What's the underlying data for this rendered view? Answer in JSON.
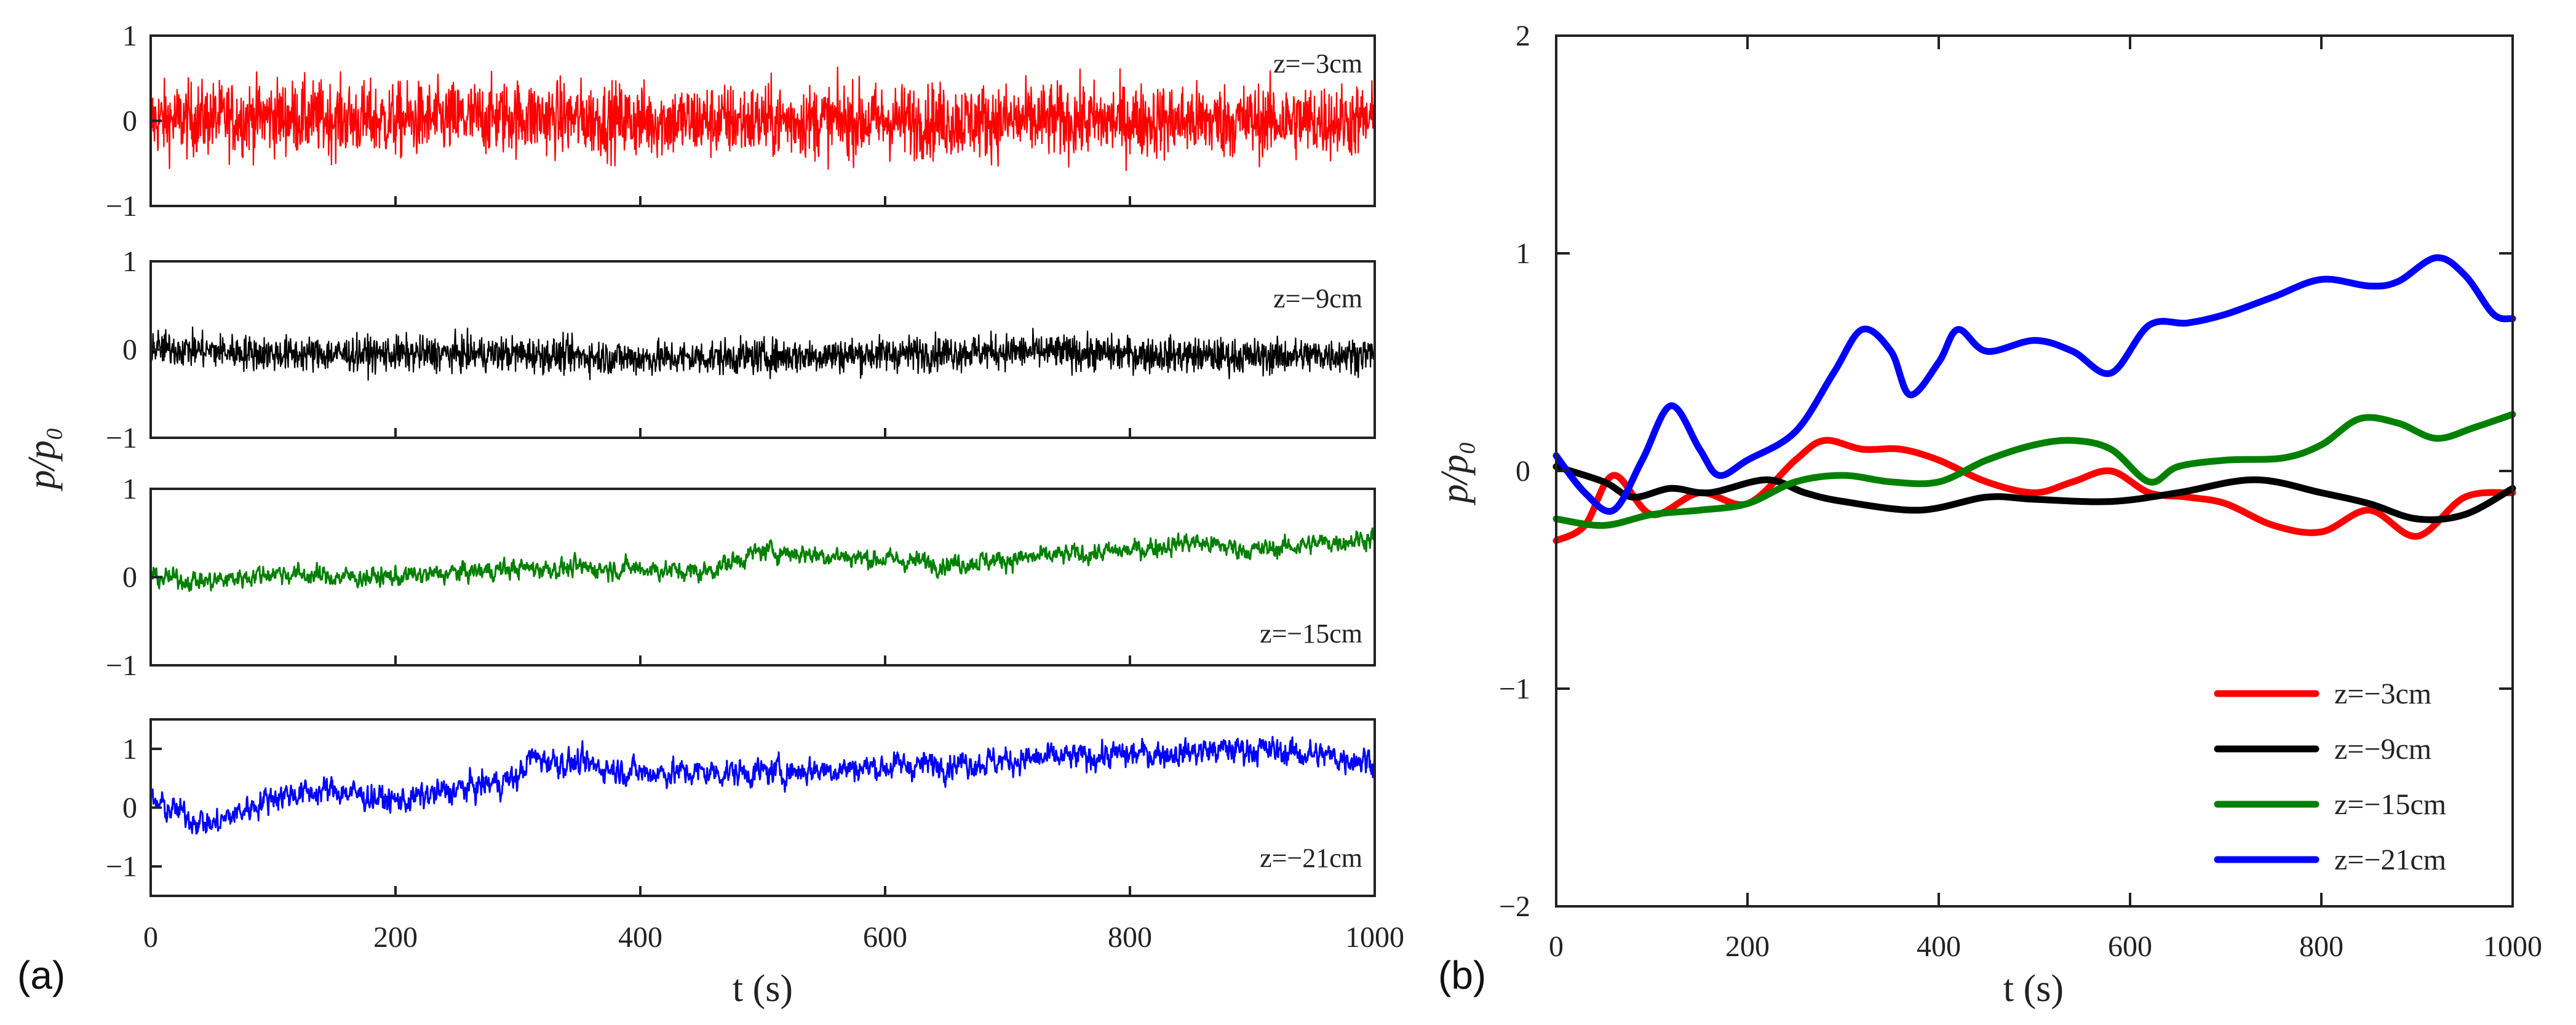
{
  "chart_data": [
    {
      "id": "a",
      "panel_label": "(a)",
      "type": "line",
      "ylabel": "p/p₀",
      "xlabel": "t (s)",
      "xlim": [
        0,
        1000
      ],
      "xticks": [
        "0",
        "200",
        "400",
        "600",
        "800",
        "1000"
      ],
      "subplots": [
        {
          "name": "z=−3cm",
          "label": "z=−3cm",
          "color": "#ff0000",
          "ylim": [
            -1,
            1
          ],
          "yticks": [
            "1",
            "0",
            "−1"
          ],
          "trend": [
            [
              0,
              0
            ],
            [
              100,
              0.05
            ],
            [
              200,
              0
            ],
            [
              300,
              0.05
            ],
            [
              400,
              0
            ],
            [
              500,
              0
            ],
            [
              600,
              0
            ],
            [
              700,
              0
            ],
            [
              800,
              0
            ],
            [
              900,
              0
            ],
            [
              1000,
              0
            ]
          ],
          "amplitude": 0.55,
          "noise": "high-frequency, dense"
        },
        {
          "name": "z=−9cm",
          "label": "z=−9cm",
          "color": "#000000",
          "ylim": [
            -1,
            1
          ],
          "yticks": [
            "1",
            "0",
            "−1"
          ],
          "trend": [
            [
              0,
              0.02
            ],
            [
              100,
              -0.05
            ],
            [
              200,
              -0.05
            ],
            [
              300,
              -0.05
            ],
            [
              400,
              -0.1
            ],
            [
              500,
              -0.08
            ],
            [
              600,
              -0.05
            ],
            [
              700,
              -0.02
            ],
            [
              800,
              -0.05
            ],
            [
              900,
              -0.08
            ],
            [
              1000,
              -0.05
            ]
          ],
          "amplitude": 0.25,
          "noise": "high-frequency, dense"
        },
        {
          "name": "z=−15cm",
          "label": "z=−15cm",
          "color": "#008000",
          "ylim": [
            -1,
            1
          ],
          "yticks": [
            "1",
            "0",
            "−1"
          ],
          "trend": [
            [
              0,
              0
            ],
            [
              50,
              -0.05
            ],
            [
              100,
              0.05
            ],
            [
              150,
              0
            ],
            [
              200,
              0
            ],
            [
              300,
              0.1
            ],
            [
              400,
              0.1
            ],
            [
              450,
              0.05
            ],
            [
              500,
              0.3
            ],
            [
              600,
              0.2
            ],
            [
              650,
              0.15
            ],
            [
              700,
              0.2
            ],
            [
              800,
              0.3
            ],
            [
              850,
              0.4
            ],
            [
              900,
              0.3
            ],
            [
              1000,
              0.45
            ]
          ],
          "amplitude": 0.12,
          "noise": "medium"
        },
        {
          "name": "z=−21cm",
          "label": "z=−21cm",
          "color": "#0000ff",
          "ylim": [
            -1.5,
            1.5
          ],
          "yticks": [
            "1",
            "0",
            "−1"
          ],
          "trend": [
            [
              0,
              0.1
            ],
            [
              50,
              -0.3
            ],
            [
              100,
              0.2
            ],
            [
              150,
              0.3
            ],
            [
              200,
              0.1
            ],
            [
              250,
              0.3
            ],
            [
              300,
              0.5
            ],
            [
              310,
              0.85
            ],
            [
              400,
              0.6
            ],
            [
              500,
              0.6
            ],
            [
              600,
              0.7
            ],
            [
              700,
              0.8
            ],
            [
              800,
              0.9
            ],
            [
              900,
              1.0
            ],
            [
              1000,
              0.8
            ]
          ],
          "amplitude": 0.25,
          "noise": "medium"
        }
      ]
    },
    {
      "id": "b",
      "panel_label": "(b)",
      "type": "line",
      "ylabel": "p/p₀",
      "xlabel": "t (s)",
      "xlim": [
        0,
        1000
      ],
      "ylim": [
        -2,
        2
      ],
      "xticks": [
        "0",
        "200",
        "400",
        "600",
        "800",
        "1000"
      ],
      "yticks": [
        "2",
        "1",
        "0",
        "−1",
        "−2"
      ],
      "legend_position": "bottom-right",
      "series": [
        {
          "name": "z=−3cm",
          "label": "z=−3cm",
          "color": "#ff0000",
          "x": [
            0,
            30,
            60,
            100,
            150,
            200,
            250,
            280,
            320,
            360,
            400,
            450,
            500,
            540,
            580,
            620,
            660,
            700,
            750,
            800,
            850,
            900,
            950,
            1000
          ],
          "y": [
            -0.32,
            -0.25,
            -0.02,
            -0.2,
            -0.1,
            -0.15,
            0.05,
            0.14,
            0.1,
            0.1,
            0.05,
            -0.05,
            -0.1,
            -0.05,
            0.0,
            -0.1,
            -0.12,
            -0.15,
            -0.25,
            -0.28,
            -0.18,
            -0.3,
            -0.12,
            -0.1
          ]
        },
        {
          "name": "z=−9cm",
          "label": "z=−9cm",
          "color": "#000000",
          "x": [
            0,
            50,
            80,
            120,
            160,
            220,
            260,
            300,
            380,
            450,
            500,
            580,
            650,
            730,
            800,
            850,
            900,
            950,
            1000
          ],
          "y": [
            0.02,
            -0.05,
            -0.12,
            -0.08,
            -0.1,
            -0.04,
            -0.1,
            -0.14,
            -0.18,
            -0.12,
            -0.13,
            -0.14,
            -0.1,
            -0.04,
            -0.1,
            -0.15,
            -0.22,
            -0.2,
            -0.08
          ]
        },
        {
          "name": "z=−15cm",
          "label": "z=−15cm",
          "color": "#008000",
          "x": [
            0,
            50,
            100,
            150,
            200,
            250,
            300,
            350,
            400,
            450,
            500,
            540,
            580,
            620,
            650,
            700,
            760,
            800,
            840,
            880,
            920,
            960,
            1000
          ],
          "y": [
            -0.22,
            -0.25,
            -0.2,
            -0.18,
            -0.15,
            -0.05,
            -0.02,
            -0.05,
            -0.05,
            0.05,
            0.12,
            0.14,
            0.1,
            -0.05,
            0.02,
            0.05,
            0.06,
            0.12,
            0.24,
            0.22,
            0.15,
            0.2,
            0.26
          ]
        },
        {
          "name": "z=−21cm",
          "label": "z=−21cm",
          "color": "#0000ff",
          "x": [
            0,
            30,
            60,
            90,
            120,
            150,
            170,
            200,
            250,
            290,
            320,
            350,
            370,
            400,
            420,
            450,
            500,
            540,
            580,
            620,
            660,
            700,
            750,
            800,
            850,
            880,
            920,
            950,
            980,
            1000
          ],
          "y": [
            0.07,
            -0.1,
            -0.18,
            0.05,
            0.3,
            0.1,
            -0.02,
            0.05,
            0.18,
            0.45,
            0.65,
            0.55,
            0.35,
            0.5,
            0.65,
            0.55,
            0.6,
            0.55,
            0.45,
            0.67,
            0.68,
            0.72,
            0.8,
            0.88,
            0.85,
            0.87,
            0.98,
            0.9,
            0.72,
            0.7
          ]
        }
      ]
    }
  ]
}
